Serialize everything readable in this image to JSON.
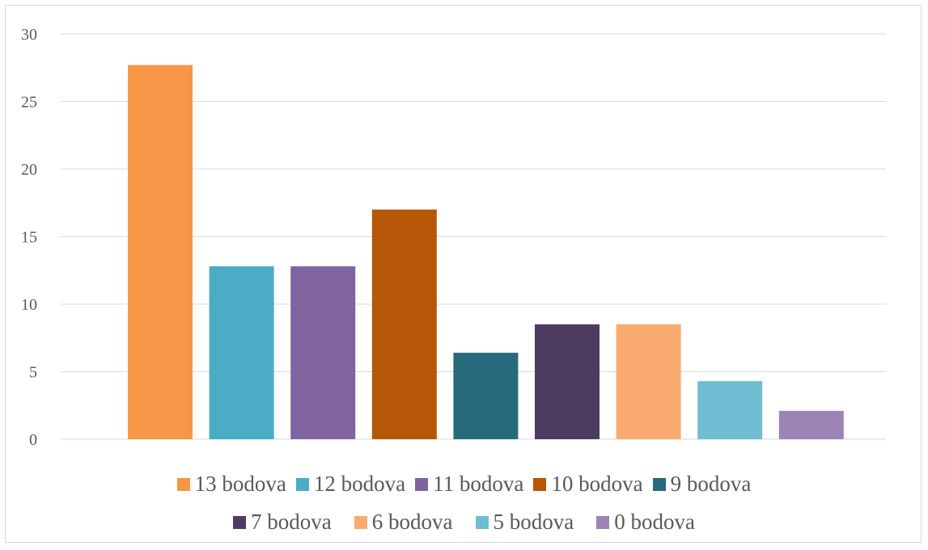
{
  "chart_data": {
    "type": "bar",
    "title": "",
    "xlabel": "",
    "ylabel": "",
    "ylim": [
      0,
      30
    ],
    "yticks": [
      0,
      5,
      10,
      15,
      20,
      25,
      30
    ],
    "grid": true,
    "legend_position": "bottom",
    "categories": [
      "13 bodova",
      "12 bodova",
      "11 bodova",
      "10 bodova",
      "9 bodova",
      "7 bodova",
      "6 bodova",
      "5 bodova",
      "0 bodova"
    ],
    "values": [
      27.7,
      12.8,
      12.8,
      17.0,
      6.4,
      8.5,
      8.5,
      4.3,
      2.1
    ],
    "colors": [
      "#F79646",
      "#4BACC6",
      "#8064A2",
      "#B65708",
      "#276A7C",
      "#4D3B62",
      "#F9AA6F",
      "#6FBDD2",
      "#9C85B6"
    ]
  },
  "legend": {
    "row1": [
      {
        "label": "13 bodova",
        "color": "#F79646"
      },
      {
        "label": "12 bodova",
        "color": "#4BACC6"
      },
      {
        "label": "11 bodova",
        "color": "#8064A2"
      },
      {
        "label": "10 bodova",
        "color": "#B65708"
      },
      {
        "label": "9 bodova",
        "color": "#276A7C"
      }
    ],
    "row2": [
      {
        "label": "7 bodova",
        "color": "#4D3B62"
      },
      {
        "label": "6 bodova",
        "color": "#F9AA6F"
      },
      {
        "label": "5 bodova",
        "color": "#6FBDD2"
      },
      {
        "label": "0 bodova",
        "color": "#9C85B6"
      }
    ]
  }
}
